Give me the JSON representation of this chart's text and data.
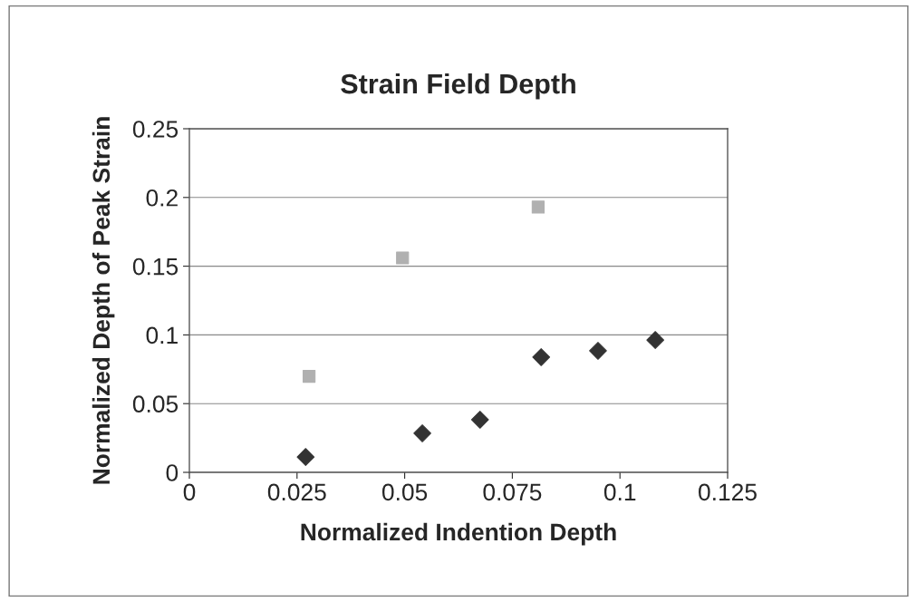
{
  "chart_data": {
    "type": "scatter",
    "title": "Strain Field Depth",
    "xlabel": "Normalized Indention Depth",
    "ylabel": "Normalized Depth of Peak Strain",
    "series": [
      {
        "color": "#333333",
        "marker": "diamond",
        "x": [
          0.027,
          0.0541,
          0.0675,
          0.0817,
          0.0949,
          0.1082
        ],
        "values": [
          0.0112,
          0.0284,
          0.0383,
          0.0838,
          0.0884,
          0.0963
        ]
      },
      {
        "color": "#b0b0b0",
        "marker": "square",
        "x": [
          0.0278,
          0.0495,
          0.081
        ],
        "values": [
          0.0699,
          0.156,
          0.193
        ]
      }
    ],
    "xlim": [
      0,
      0.125
    ],
    "xticks": [
      0,
      0.025,
      0.05,
      0.075,
      0.1,
      0.125
    ],
    "ylim": [
      0,
      0.25
    ],
    "yticks": [
      0,
      0.05,
      0.1,
      0.15,
      0.2,
      0.25
    ],
    "grid": "y"
  }
}
